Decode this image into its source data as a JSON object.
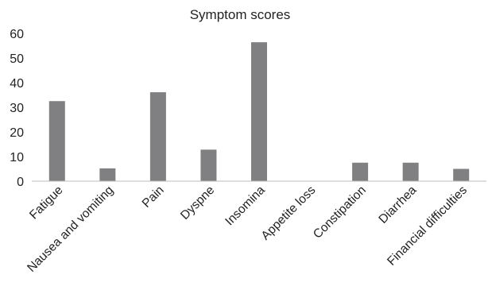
{
  "chart_data": {
    "type": "bar",
    "title": "Symptom scores",
    "categories": [
      "Fatigue",
      "Nausea and vomiting",
      "Pain",
      "Dyspne",
      "Insomina",
      "Appetite loss",
      "Constipation",
      "Diarrhea",
      "Financial difficulties"
    ],
    "values": [
      32.5,
      5.2,
      36.1,
      12.8,
      56.4,
      0,
      7.5,
      7.5,
      5
    ],
    "ylim": [
      0,
      60
    ],
    "yticks": [
      0,
      10,
      20,
      30,
      40,
      50,
      60
    ],
    "ytick_labels": [
      "0",
      "10",
      "20",
      "30",
      "40",
      "50",
      "60"
    ],
    "xlabel": "",
    "ylabel": "",
    "grid": false,
    "legend": "none",
    "bar_color": "#808083"
  }
}
